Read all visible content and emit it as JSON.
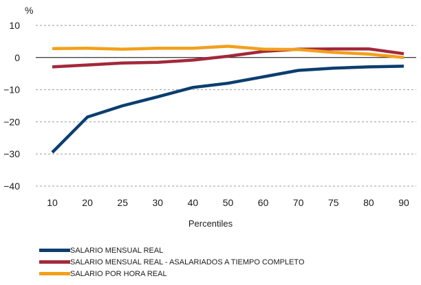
{
  "chart_data": {
    "type": "line",
    "title": "",
    "ylabel": "%",
    "xlabel": "Percentiles",
    "categories": [
      "10",
      "20",
      "25",
      "30",
      "40",
      "50",
      "60",
      "70",
      "75",
      "80",
      "90"
    ],
    "ylim": [
      -40,
      10
    ],
    "yticks": [
      "10",
      "0",
      "-10",
      "-20",
      "-30",
      "-40"
    ],
    "ytick_values": [
      10,
      0,
      -10,
      -20,
      -30,
      -40
    ],
    "grid": true,
    "legend_position": "bottom",
    "series": [
      {
        "name": "SALARIO MENSUAL REAL",
        "color": "#0b3e6f",
        "values": [
          -29.5,
          -18.5,
          -15.0,
          -12.2,
          -9.3,
          -8.0,
          -6.0,
          -4.0,
          -3.3,
          -2.9,
          -2.7
        ]
      },
      {
        "name": "SALARIO MENSUAL REAL - ASALARIADOS A TIEMPO COMPLETO",
        "color": "#a3283b",
        "values": [
          -2.9,
          -2.3,
          -1.7,
          -1.5,
          -0.8,
          0.4,
          1.9,
          2.6,
          2.7,
          2.7,
          1.2
        ]
      },
      {
        "name": "SALARIO POR HORA REAL",
        "color": "#f2a01b",
        "values": [
          2.8,
          2.9,
          2.6,
          2.9,
          2.9,
          3.5,
          2.6,
          2.5,
          1.6,
          1.1,
          0.0
        ]
      }
    ]
  }
}
